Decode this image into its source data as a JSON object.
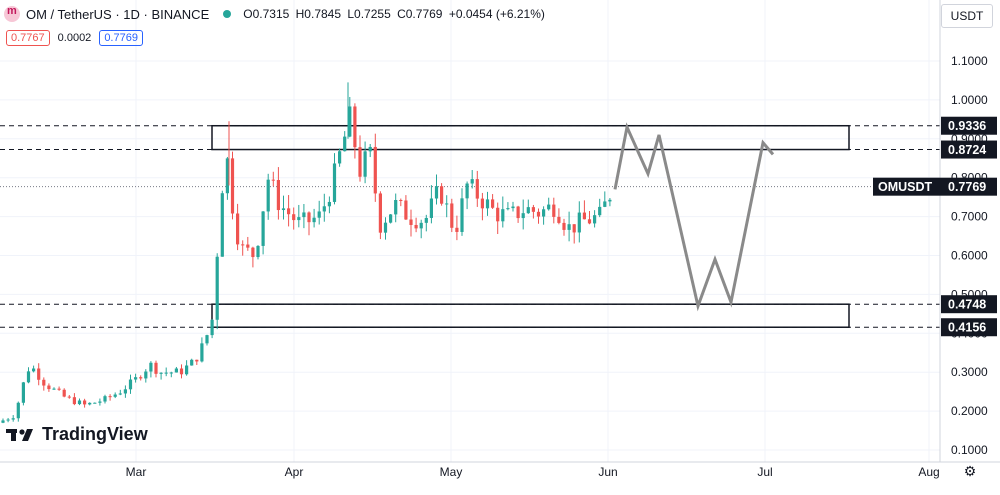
{
  "header": {
    "symbol_line": "OM / TetherUS · 1D · BINANCE",
    "open": "O0.7315",
    "high": "H0.7845",
    "low": "L0.7255",
    "close": "C0.7769",
    "change": "+0.0454 (+6.21%)"
  },
  "quote": {
    "bid": "0.7767",
    "spread": "0.0002",
    "ask": "0.7769"
  },
  "currency_label": "USDT",
  "brand": "TradingView",
  "chart_data": {
    "type": "candlestick",
    "x_ticks": [
      "Mar",
      "Apr",
      "May",
      "Jun",
      "Jul",
      "Aug"
    ],
    "y_ticks": [
      "1.1000",
      "1.0000",
      "0.9000",
      "0.8000",
      "0.7000",
      "0.6000",
      "0.5000",
      "0.4000",
      "0.3000",
      "0.2000",
      "0.1000"
    ],
    "ylim": [
      0.1,
      1.1
    ],
    "price_tag": {
      "label": "OMUSDT",
      "value": "0.7769",
      "price": 0.7769
    },
    "levels": [
      {
        "label": "0.9336",
        "price": 0.9336
      },
      {
        "label": "0.8724",
        "price": 0.8724
      },
      {
        "label": "0.4748",
        "price": 0.4748
      },
      {
        "label": "0.4156",
        "price": 0.4156
      }
    ],
    "zones": [
      {
        "top": 0.9336,
        "bottom": 0.8724
      },
      {
        "top": 0.4748,
        "bottom": 0.4156
      }
    ],
    "projection": [
      0.77,
      0.93,
      0.81,
      0.91,
      0.47,
      0.59,
      0.48,
      0.89,
      0.86
    ],
    "colors": {
      "up": "#26a69a",
      "down": "#ef5350",
      "grid": "#f0f3fa",
      "projection": "#8a8a8a"
    }
  }
}
